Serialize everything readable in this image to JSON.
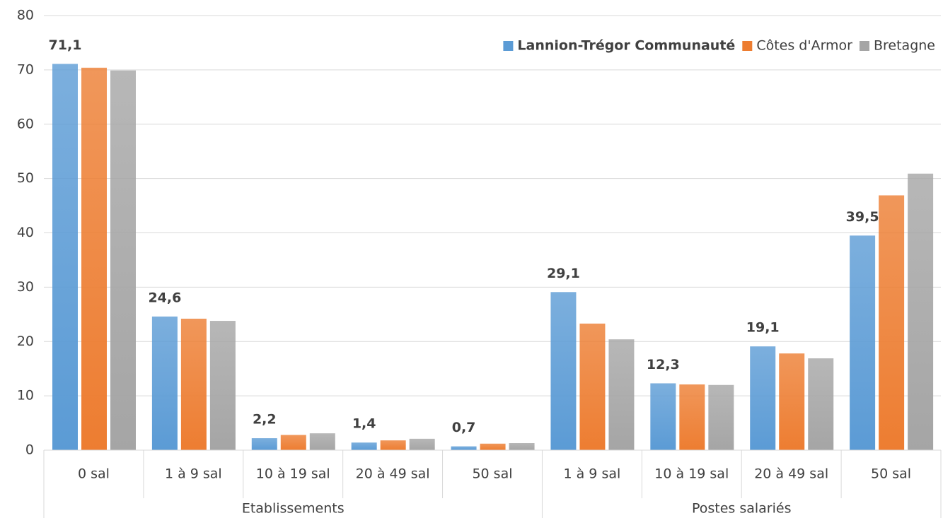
{
  "chart_data": {
    "type": "bar",
    "groups": [
      {
        "label": "Etablissements",
        "categories": [
          "0 sal",
          "1 à 9 sal",
          "10 à 19 sal",
          "20 à 49 sal",
          "50 sal"
        ]
      },
      {
        "label": "Postes salariés",
        "categories": [
          "1 à 9 sal",
          "10 à 19 sal",
          "20 à 49 sal",
          "50 sal"
        ]
      }
    ],
    "series": [
      {
        "name": "Lannion-Trégor Communauté",
        "color": "#5b9bd5",
        "values": [
          71.1,
          24.6,
          2.2,
          1.4,
          0.7,
          29.1,
          12.3,
          19.1,
          39.5
        ],
        "value_labels": [
          "71,1",
          "24,6",
          "2,2",
          "1,4",
          "0,7",
          "29,1",
          "12,3",
          "19,1",
          "39,5"
        ]
      },
      {
        "name": "Côtes d'Armor",
        "color": "#ed7d31",
        "values": [
          70.4,
          24.2,
          2.8,
          1.8,
          1.2,
          23.3,
          12.1,
          17.8,
          46.9
        ]
      },
      {
        "name": "Bretagne",
        "color": "#a5a5a5",
        "values": [
          69.9,
          23.8,
          3.1,
          2.1,
          1.3,
          20.4,
          12.0,
          16.9,
          50.9
        ]
      }
    ],
    "ylim": [
      0,
      80
    ],
    "yticks": [
      0,
      10,
      20,
      30,
      40,
      50,
      60,
      70,
      80
    ],
    "grid": true,
    "legend": "top-right"
  }
}
